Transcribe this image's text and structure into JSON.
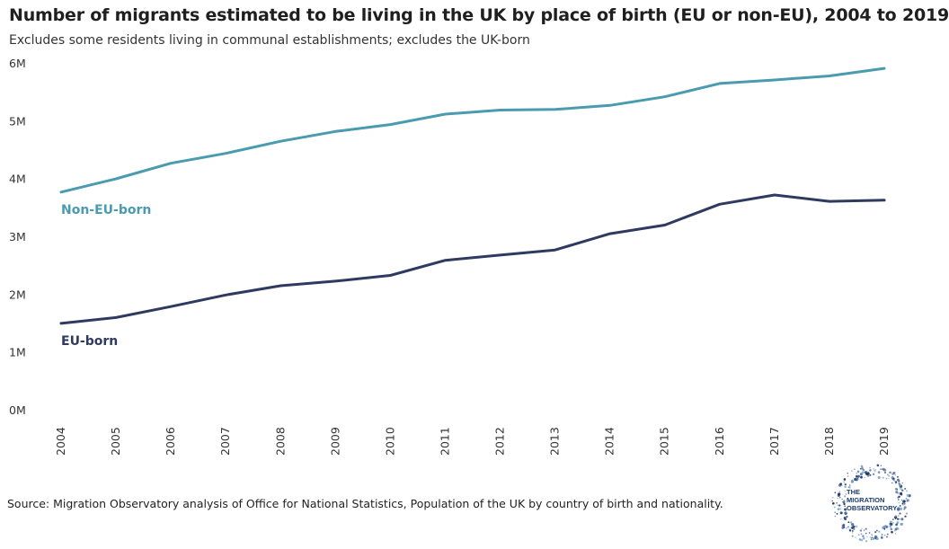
{
  "chart_data": {
    "type": "line",
    "title": "Number of migrants estimated to be living in the UK by place of birth (EU or non-EU), 2004 to 2019",
    "subtitle": "Excludes some residents living in communal establishments; excludes the UK-born",
    "xlabel": "",
    "ylabel": "",
    "x": [
      "2004",
      "2005",
      "2006",
      "2007",
      "2008",
      "2009",
      "2010",
      "2011",
      "2012",
      "2013",
      "2014",
      "2015",
      "2016",
      "2017",
      "2018",
      "2019"
    ],
    "ylim": [
      0,
      6000000
    ],
    "y_ticks": [
      {
        "value": 0,
        "label": "0M"
      },
      {
        "value": 1000000,
        "label": "1M"
      },
      {
        "value": 2000000,
        "label": "2M"
      },
      {
        "value": 3000000,
        "label": "3M"
      },
      {
        "value": 4000000,
        "label": "4M"
      },
      {
        "value": 5000000,
        "label": "5M"
      },
      {
        "value": 6000000,
        "label": "6M"
      }
    ],
    "grid": false,
    "legend": "direct labels",
    "series": [
      {
        "name": "Non-EU-born",
        "color": "#4a9bb0",
        "values": [
          3780000,
          4010000,
          4280000,
          4450000,
          4660000,
          4830000,
          4950000,
          5130000,
          5200000,
          5210000,
          5280000,
          5430000,
          5660000,
          5720000,
          5790000,
          5920000
        ]
      },
      {
        "name": "EU-born",
        "color": "#2e3a60",
        "values": [
          1510000,
          1610000,
          1800000,
          2000000,
          2160000,
          2240000,
          2340000,
          2600000,
          2690000,
          2780000,
          3060000,
          3210000,
          3570000,
          3730000,
          3620000,
          3640000
        ]
      }
    ]
  },
  "source": "Source: Migration Observatory analysis of Office for National Statistics, Population of the UK by country of birth and nationality.",
  "logo": {
    "line1": "THE",
    "line2": "MIGRATION",
    "line3": "OBSERVATORY"
  }
}
